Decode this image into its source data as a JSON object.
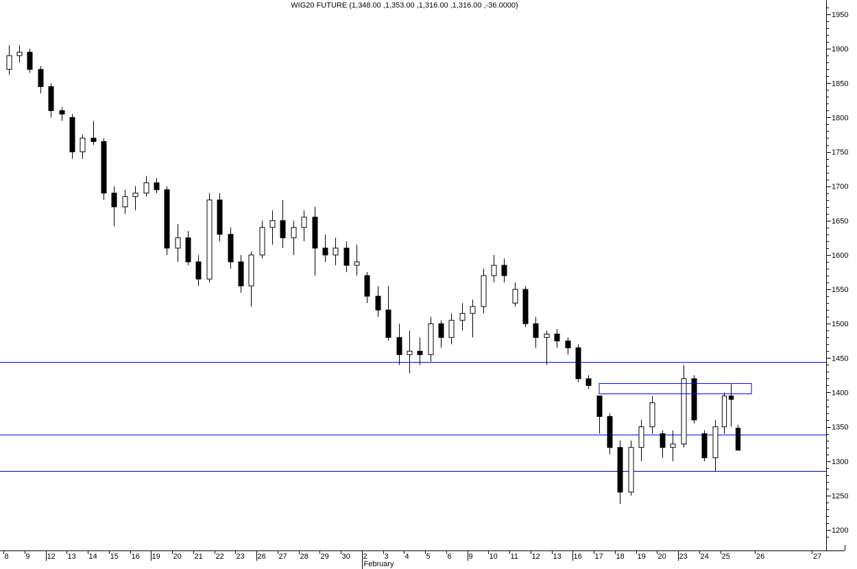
{
  "chart_data": {
    "type": "candlestick",
    "title": "WIG20 FUTURE (1,348.00 ,1,353.00 ,1,316.00 ,1,316.00 ,-36.0000)",
    "ylim": [
      1180,
      1970
    ],
    "y_ticks": [
      "1200",
      "1250",
      "1300",
      "1350",
      "1400",
      "1450",
      "1500",
      "1550",
      "1600",
      "1650",
      "1700",
      "1750",
      "1800",
      "1850",
      "1900",
      "1950"
    ],
    "month_label": "February",
    "month_label_at": "2",
    "future_ticks": [
      "26",
      "27"
    ],
    "colors": {
      "up": "#ffffff",
      "down": "#000000",
      "line_blue": "#0000ff",
      "line_navy": "#000080",
      "box": "#0000ff"
    },
    "days": [
      {
        "label": "8",
        "candles": [
          [
            1870,
            1905,
            1862,
            1890
          ],
          [
            1890,
            1905,
            1880,
            1895
          ]
        ]
      },
      {
        "label": "9",
        "candles": [
          [
            1895,
            1900,
            1865,
            1870
          ],
          [
            1870,
            1875,
            1835,
            1845
          ]
        ]
      },
      {
        "label": "12",
        "candles": [
          [
            1845,
            1850,
            1800,
            1810
          ],
          [
            1810,
            1815,
            1795,
            1805
          ]
        ]
      },
      {
        "label": "13",
        "candles": [
          [
            1800,
            1805,
            1740,
            1750
          ],
          [
            1750,
            1775,
            1740,
            1770
          ]
        ]
      },
      {
        "label": "14",
        "candles": [
          [
            1770,
            1795,
            1760,
            1765
          ],
          [
            1765,
            1770,
            1680,
            1690
          ]
        ]
      },
      {
        "label": "15",
        "candles": [
          [
            1690,
            1700,
            1642,
            1670
          ],
          [
            1670,
            1695,
            1660,
            1685
          ]
        ]
      },
      {
        "label": "16",
        "candles": [
          [
            1685,
            1700,
            1665,
            1690
          ],
          [
            1690,
            1715,
            1685,
            1705
          ]
        ]
      },
      {
        "label": "19",
        "candles": [
          [
            1705,
            1712,
            1690,
            1695
          ],
          [
            1695,
            1700,
            1600,
            1610
          ]
        ]
      },
      {
        "label": "20",
        "candles": [
          [
            1610,
            1645,
            1590,
            1625
          ],
          [
            1625,
            1635,
            1585,
            1590
          ]
        ]
      },
      {
        "label": "21",
        "candles": [
          [
            1590,
            1600,
            1555,
            1565
          ],
          [
            1565,
            1690,
            1560,
            1680
          ]
        ]
      },
      {
        "label": "22",
        "candles": [
          [
            1680,
            1690,
            1620,
            1630
          ],
          [
            1630,
            1640,
            1580,
            1590
          ]
        ]
      },
      {
        "label": "23",
        "candles": [
          [
            1590,
            1600,
            1545,
            1555
          ],
          [
            1555,
            1605,
            1525,
            1600
          ]
        ]
      },
      {
        "label": "26",
        "candles": [
          [
            1600,
            1650,
            1595,
            1640
          ],
          [
            1640,
            1665,
            1615,
            1650
          ]
        ]
      },
      {
        "label": "27",
        "candles": [
          [
            1650,
            1680,
            1610,
            1625
          ],
          [
            1625,
            1650,
            1600,
            1640
          ]
        ]
      },
      {
        "label": "28",
        "candles": [
          [
            1640,
            1665,
            1620,
            1655
          ],
          [
            1655,
            1670,
            1570,
            1610
          ]
        ]
      },
      {
        "label": "29",
        "candles": [
          [
            1610,
            1630,
            1590,
            1600
          ],
          [
            1600,
            1625,
            1585,
            1610
          ]
        ]
      },
      {
        "label": "30",
        "candles": [
          [
            1610,
            1620,
            1575,
            1585
          ],
          [
            1585,
            1615,
            1570,
            1590
          ]
        ]
      },
      {
        "label": "2",
        "candles": [
          [
            1570,
            1575,
            1530,
            1540
          ],
          [
            1540,
            1555,
            1510,
            1520
          ]
        ]
      },
      {
        "label": "3",
        "candles": [
          [
            1520,
            1555,
            1475,
            1480
          ],
          [
            1480,
            1500,
            1440,
            1455
          ]
        ]
      },
      {
        "label": "4",
        "candles": [
          [
            1455,
            1490,
            1428,
            1460
          ],
          [
            1460,
            1480,
            1440,
            1455
          ]
        ]
      },
      {
        "label": "5",
        "candles": [
          [
            1455,
            1510,
            1445,
            1500
          ],
          [
            1500,
            1505,
            1465,
            1480
          ]
        ]
      },
      {
        "label": "6",
        "candles": [
          [
            1480,
            1515,
            1470,
            1505
          ],
          [
            1505,
            1530,
            1490,
            1515
          ]
        ]
      },
      {
        "label": "9",
        "candles": [
          [
            1515,
            1535,
            1480,
            1525
          ],
          [
            1525,
            1580,
            1515,
            1570
          ]
        ]
      },
      {
        "label": "10",
        "candles": [
          [
            1570,
            1600,
            1560,
            1585
          ],
          [
            1585,
            1595,
            1560,
            1570
          ]
        ]
      },
      {
        "label": "11",
        "candles": [
          [
            1530,
            1560,
            1525,
            1550
          ],
          [
            1550,
            1555,
            1495,
            1500
          ]
        ]
      },
      {
        "label": "12",
        "candles": [
          [
            1500,
            1510,
            1465,
            1480
          ],
          [
            1480,
            1490,
            1440,
            1485
          ]
        ]
      },
      {
        "label": "13",
        "candles": [
          [
            1485,
            1492,
            1465,
            1475
          ],
          [
            1475,
            1480,
            1455,
            1465
          ]
        ]
      },
      {
        "label": "16",
        "candles": [
          [
            1465,
            1470,
            1415,
            1420
          ],
          [
            1420,
            1425,
            1405,
            1410
          ]
        ]
      },
      {
        "label": "17",
        "candles": [
          [
            1395,
            1395,
            1340,
            1365
          ],
          [
            1365,
            1370,
            1310,
            1320
          ]
        ]
      },
      {
        "label": "18",
        "candles": [
          [
            1320,
            1330,
            1238,
            1255
          ],
          [
            1255,
            1330,
            1250,
            1320
          ]
        ]
      },
      {
        "label": "19",
        "candles": [
          [
            1320,
            1360,
            1300,
            1350
          ],
          [
            1350,
            1395,
            1340,
            1385
          ]
        ]
      },
      {
        "label": "20",
        "candles": [
          [
            1340,
            1345,
            1305,
            1320
          ],
          [
            1320,
            1345,
            1300,
            1325
          ]
        ]
      },
      {
        "label": "23",
        "candles": [
          [
            1325,
            1440,
            1320,
            1420
          ],
          [
            1420,
            1425,
            1355,
            1360
          ]
        ]
      },
      {
        "label": "24",
        "candles": [
          [
            1340,
            1345,
            1300,
            1305
          ],
          [
            1305,
            1360,
            1285,
            1350
          ]
        ]
      },
      {
        "label": "25",
        "candles": [
          [
            1350,
            1400,
            1340,
            1395
          ],
          [
            1395,
            1412,
            1350,
            1390
          ],
          [
            1348,
            1353,
            1316,
            1316
          ]
        ]
      }
    ],
    "hlines": [
      {
        "value": 1444,
        "color": "#0000ff"
      },
      {
        "value": 1339,
        "color": "#0000ff"
      },
      {
        "value": 1286,
        "color": "#000080"
      }
    ],
    "box": {
      "from_day": "17",
      "to_day": "26",
      "low": 1398,
      "high": 1413,
      "color": "#0000ff"
    }
  }
}
